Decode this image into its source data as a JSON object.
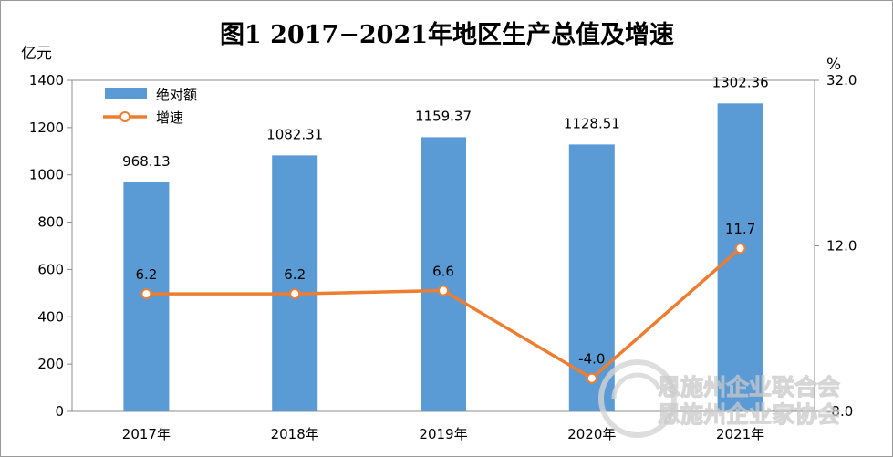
{
  "chart_data": {
    "type": "bar",
    "title": "图1  2017−2021年地区生产总值及增速",
    "categories": [
      "2017年",
      "2018年",
      "2019年",
      "2020年",
      "2021年"
    ],
    "ylabel": "亿元",
    "y2label": "%",
    "ylim": [
      0,
      1400
    ],
    "y2lim": [
      -8.0,
      32.0
    ],
    "yticks": [
      "0",
      "200",
      "400",
      "600",
      "800",
      "1000",
      "1200",
      "1400"
    ],
    "y2ticks": [
      "-8.0",
      "12.0",
      "32.0"
    ],
    "legend_position": "top-left",
    "grid": false,
    "series": [
      {
        "name": "绝对额",
        "type": "bar",
        "axis": "left",
        "color": "#5b9bd5",
        "values": [
          968.13,
          1082.31,
          1159.37,
          1128.51,
          1302.36
        ],
        "labels": [
          "968.13",
          "1082.31",
          "1159.37",
          "1128.51",
          "1302.36"
        ]
      },
      {
        "name": "增速",
        "type": "line",
        "axis": "right",
        "color": "#ed7d31",
        "values": [
          6.2,
          6.2,
          6.6,
          -4.0,
          11.7
        ],
        "labels": [
          "6.2",
          "6.2",
          "6.6",
          "-4.0",
          "11.7"
        ]
      }
    ]
  },
  "watermark": {
    "line1": "恩施州企业联合会",
    "line2": "恩施州企业家协会"
  }
}
